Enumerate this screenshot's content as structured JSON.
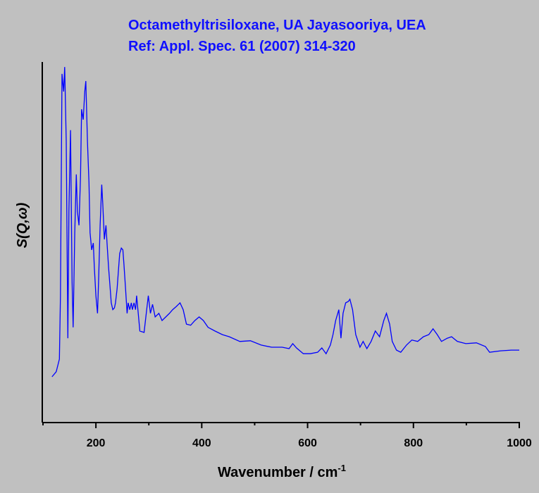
{
  "chart_data": {
    "type": "line",
    "title": "Octamethyltrisiloxane, UA Jayasooriya, UEA",
    "subtitle": "Ref: Appl. Spec. 61 (2007) 314-320",
    "x_label": "Wavenumber / cm",
    "x_label_sup": "-1",
    "y_label": "S(Q,ω)",
    "color": "#0000ff",
    "xlim": [
      100,
      1000
    ],
    "xticks": [
      200,
      400,
      600,
      800,
      1000
    ],
    "xminorticks": [
      100,
      300,
      500,
      700,
      900
    ],
    "ylim": [
      0,
      100
    ],
    "x": [
      117,
      125,
      131,
      133,
      136,
      139,
      141,
      144,
      147,
      149,
      152,
      155,
      157,
      160,
      163,
      165,
      168,
      171,
      173,
      176,
      179,
      181,
      184,
      187,
      189,
      192,
      195,
      197,
      200,
      203,
      205,
      208,
      211,
      213,
      216,
      219,
      221,
      224,
      227,
      229,
      232,
      235,
      237,
      240,
      243,
      245,
      248,
      251,
      253,
      256,
      259,
      261,
      264,
      267,
      269,
      272,
      275,
      277,
      280,
      283,
      291,
      296,
      299,
      303,
      307,
      312,
      319,
      325,
      332,
      339,
      345,
      352,
      359,
      365,
      371,
      379,
      387,
      395,
      403,
      412,
      425,
      439,
      452,
      472,
      492,
      512,
      532,
      552,
      565,
      572,
      579,
      592,
      605,
      619,
      627,
      635,
      643,
      648,
      653,
      659,
      663,
      667,
      672,
      677,
      680,
      685,
      691,
      699,
      705,
      712,
      720,
      728,
      736,
      744,
      749,
      755,
      760,
      768,
      776,
      787,
      797,
      808,
      819,
      829,
      837,
      845,
      853,
      864,
      872,
      883,
      899,
      919,
      936,
      944,
      965,
      985,
      1000
    ],
    "values": [
      12.7,
      14.1,
      17.6,
      35.2,
      96.7,
      91.8,
      98.6,
      78.1,
      23.4,
      58.6,
      81.1,
      39.1,
      26.4,
      52.7,
      68.8,
      58.6,
      54.7,
      68.4,
      86.9,
      84.0,
      91.8,
      94.7,
      78.1,
      66.4,
      52.7,
      47.9,
      49.8,
      43.0,
      35.2,
      30.3,
      39.1,
      54.7,
      66.0,
      60.5,
      50.8,
      54.7,
      49.8,
      43.0,
      37.1,
      33.2,
      31.3,
      31.8,
      33.2,
      37.1,
      43.0,
      46.9,
      48.4,
      47.9,
      43.9,
      37.1,
      30.3,
      33.2,
      31.3,
      33.2,
      31.3,
      33.2,
      31.3,
      35.2,
      30.3,
      25.4,
      25.0,
      31.3,
      35.2,
      30.3,
      32.8,
      29.3,
      30.3,
      28.3,
      29.3,
      30.3,
      31.3,
      32.2,
      33.2,
      31.3,
      27.3,
      27.0,
      28.3,
      29.3,
      28.3,
      26.4,
      25.4,
      24.4,
      23.8,
      22.5,
      22.7,
      21.5,
      20.9,
      20.9,
      20.5,
      21.9,
      20.7,
      19.1,
      19.1,
      19.5,
      20.7,
      19.1,
      21.5,
      24.4,
      28.3,
      31.3,
      23.4,
      30.3,
      33.2,
      33.6,
      34.2,
      31.3,
      24.4,
      20.9,
      22.5,
      20.5,
      22.5,
      25.4,
      23.8,
      28.3,
      30.3,
      27.3,
      22.5,
      20.1,
      19.5,
      21.5,
      22.9,
      22.5,
      23.8,
      24.4,
      26.0,
      24.4,
      22.5,
      23.4,
      23.8,
      22.5,
      21.9,
      22.1,
      21.1,
      19.5,
      19.9,
      20.1,
      20.1
    ]
  }
}
